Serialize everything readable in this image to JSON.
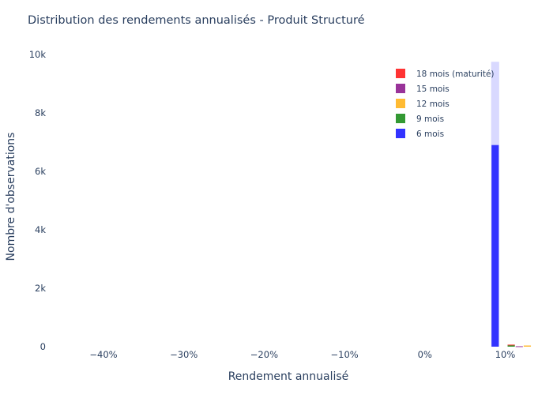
{
  "chart_data": {
    "type": "bar",
    "title": "Distribution des rendements annualisés - Produit Structuré",
    "xlabel": "Rendement annualisé",
    "ylabel": "Nombre d'observations",
    "barmode": "stack",
    "xlim": [
      -0.46,
      0.13
    ],
    "ylim": [
      0,
      10000
    ],
    "x_ticks": [
      {
        "value": -0.4,
        "label": "−40%"
      },
      {
        "value": -0.3,
        "label": "−30%"
      },
      {
        "value": -0.2,
        "label": "−20%"
      },
      {
        "value": -0.1,
        "label": "−10%"
      },
      {
        "value": 0.0,
        "label": "0%"
      },
      {
        "value": 0.1,
        "label": "10%"
      }
    ],
    "y_ticks": [
      {
        "value": 0,
        "label": "0"
      },
      {
        "value": 2000,
        "label": "2k"
      },
      {
        "value": 4000,
        "label": "4k"
      },
      {
        "value": 6000,
        "label": "6k"
      },
      {
        "value": 8000,
        "label": "8k"
      },
      {
        "value": 10000,
        "label": "10k"
      }
    ],
    "grid": false,
    "legend_position": "top-right",
    "series": [
      {
        "name": "18 mois (maturité)",
        "color": "#ff3333",
        "bins": [
          {
            "x0": 0.1025,
            "x1": 0.1125,
            "value": 10
          }
        ]
      },
      {
        "name": "15 mois",
        "color": "#993399",
        "bins": [
          {
            "x0": 0.1125,
            "x1": 0.1225,
            "value": 15
          }
        ]
      },
      {
        "name": "12 mois",
        "color": "#ffbb33",
        "bins": [
          {
            "x0": 0.1225,
            "x1": 0.1325,
            "value": 40
          }
        ]
      },
      {
        "name": "9 mois",
        "color": "#339933",
        "bins": [
          {
            "x0": 0.1025,
            "x1": 0.1125,
            "value": 60
          }
        ]
      },
      {
        "name": "6 mois",
        "color": "#3333ff",
        "bins": [
          {
            "x0": 0.0825,
            "x1": 0.0925,
            "value": 6900
          }
        ]
      }
    ],
    "background_bars": [
      {
        "x0": 0.0825,
        "x1": 0.0925,
        "value": 9750,
        "color": "#d9d9ff"
      }
    ]
  }
}
